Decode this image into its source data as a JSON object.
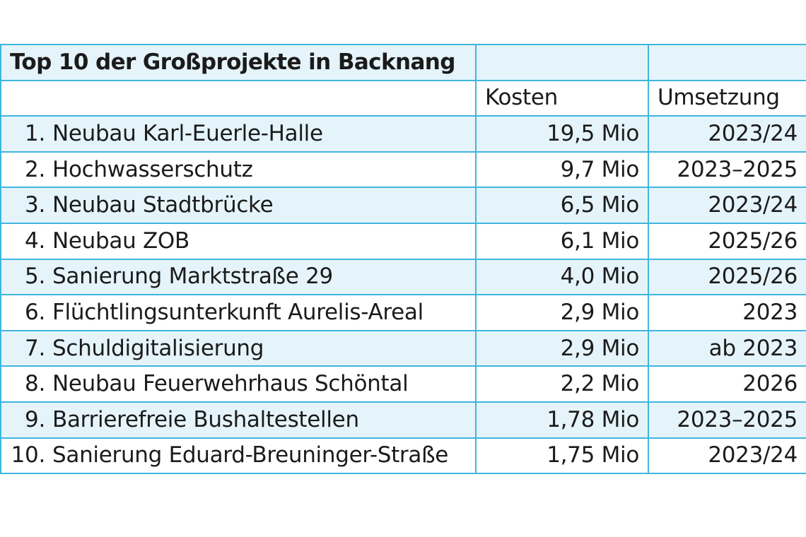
{
  "table": {
    "title": "Top 10 der Großprojekte in Backnang",
    "columns": [
      "",
      "Kosten",
      "Umsetzung"
    ],
    "rows": [
      {
        "rank": "1.",
        "name": "Neubau Karl-Euerle-Halle",
        "kosten": "19,5 Mio",
        "umsetzung": "2023/24"
      },
      {
        "rank": "2.",
        "name": "Hochwasserschutz",
        "kosten": "9,7 Mio",
        "umsetzung": "2023–2025"
      },
      {
        "rank": "3.",
        "name": "Neubau Stadtbrücke",
        "kosten": "6,5 Mio",
        "umsetzung": "2023/24"
      },
      {
        "rank": "4.",
        "name": "Neubau ZOB",
        "kosten": "6,1 Mio",
        "umsetzung": "2025/26"
      },
      {
        "rank": "5.",
        "name": "Sanierung Marktstraße 29",
        "kosten": "4,0 Mio",
        "umsetzung": "2025/26"
      },
      {
        "rank": "6.",
        "name": "Flüchtlingsunterkunft Aurelis-Areal",
        "kosten": "2,9 Mio",
        "umsetzung": "2023"
      },
      {
        "rank": "7.",
        "name": "Schuldigitalisierung",
        "kosten": "2,9 Mio",
        "umsetzung": "ab 2023"
      },
      {
        "rank": "8.",
        "name": "Neubau Feuerwehrhaus Schöntal",
        "kosten": "2,2 Mio",
        "umsetzung": "2026"
      },
      {
        "rank": "9.",
        "name": "Barrierefreie Bushaltestellen",
        "kosten": "1,78 Mio",
        "umsetzung": "2023–2025"
      },
      {
        "rank": "10.",
        "name": "Sanierung Eduard-Breuninger-Straße",
        "kosten": "1,75 Mio",
        "umsetzung": "2023/24"
      }
    ]
  },
  "colors": {
    "border": "#3fb6df",
    "shaded_row": "#e5f4fb",
    "plain_row": "#ffffff"
  },
  "chart_data": {
    "type": "table",
    "title": "Top 10 der Großprojekte in Backnang",
    "columns": [
      "",
      "Kosten",
      "Umsetzung"
    ],
    "rows": [
      [
        "1. Neubau Karl-Euerle-Halle",
        "19,5 Mio",
        "2023/24"
      ],
      [
        "2. Hochwasserschutz",
        "9,7 Mio",
        "2023–2025"
      ],
      [
        "3. Neubau Stadtbrücke",
        "6,5 Mio",
        "2023/24"
      ],
      [
        "4. Neubau ZOB",
        "6,1 Mio",
        "2025/26"
      ],
      [
        "5. Sanierung Marktstraße 29",
        "4,0 Mio",
        "2025/26"
      ],
      [
        "6. Flüchtlingsunterkunft Aurelis-Areal",
        "2,9 Mio",
        "2023"
      ],
      [
        "7. Schuldigitalisierung",
        "2,9 Mio",
        "ab 2023"
      ],
      [
        "8. Neubau Feuerwehrhaus Schöntal",
        "2,2 Mio",
        "2026"
      ],
      [
        "9. Barrierefreie Bushaltestellen",
        "1,78 Mio",
        "2023–2025"
      ],
      [
        "10. Sanierung Eduard-Breuninger-Straße",
        "1,75 Mio",
        "2023/24"
      ]
    ]
  }
}
